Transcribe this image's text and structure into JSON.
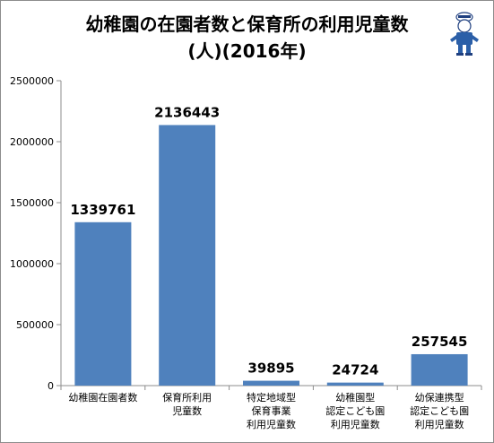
{
  "chart_data": {
    "type": "bar",
    "title_line1": "幼稚園の在園者数と保育所の利用児童数",
    "title_line2": "(人)(2016年)",
    "categories": [
      [
        "幼稚園在園者数"
      ],
      [
        "保育所利用",
        "児童数"
      ],
      [
        "特定地域型",
        "保育事業",
        "利用児童数"
      ],
      [
        "幼稚園型",
        "認定こども園",
        "利用児童数"
      ],
      [
        "幼保連携型",
        "認定こども園",
        "利用児童数"
      ]
    ],
    "values": [
      1339761,
      2136443,
      39895,
      24724,
      257545
    ],
    "data_labels": [
      "1339761",
      "2136443",
      "39895",
      "24724",
      "257545"
    ],
    "yticks": [
      0,
      500000,
      1000000,
      1500000,
      2000000,
      2500000
    ],
    "ytick_labels": [
      "0",
      "500000",
      "1000000",
      "1500000",
      "2000000",
      "2500000"
    ],
    "ylim": [
      0,
      2500000
    ],
    "grid": false,
    "legend": "none",
    "bar_color": "#4f81bd"
  },
  "mascot": {
    "icon": "figure-mascot-icon"
  }
}
